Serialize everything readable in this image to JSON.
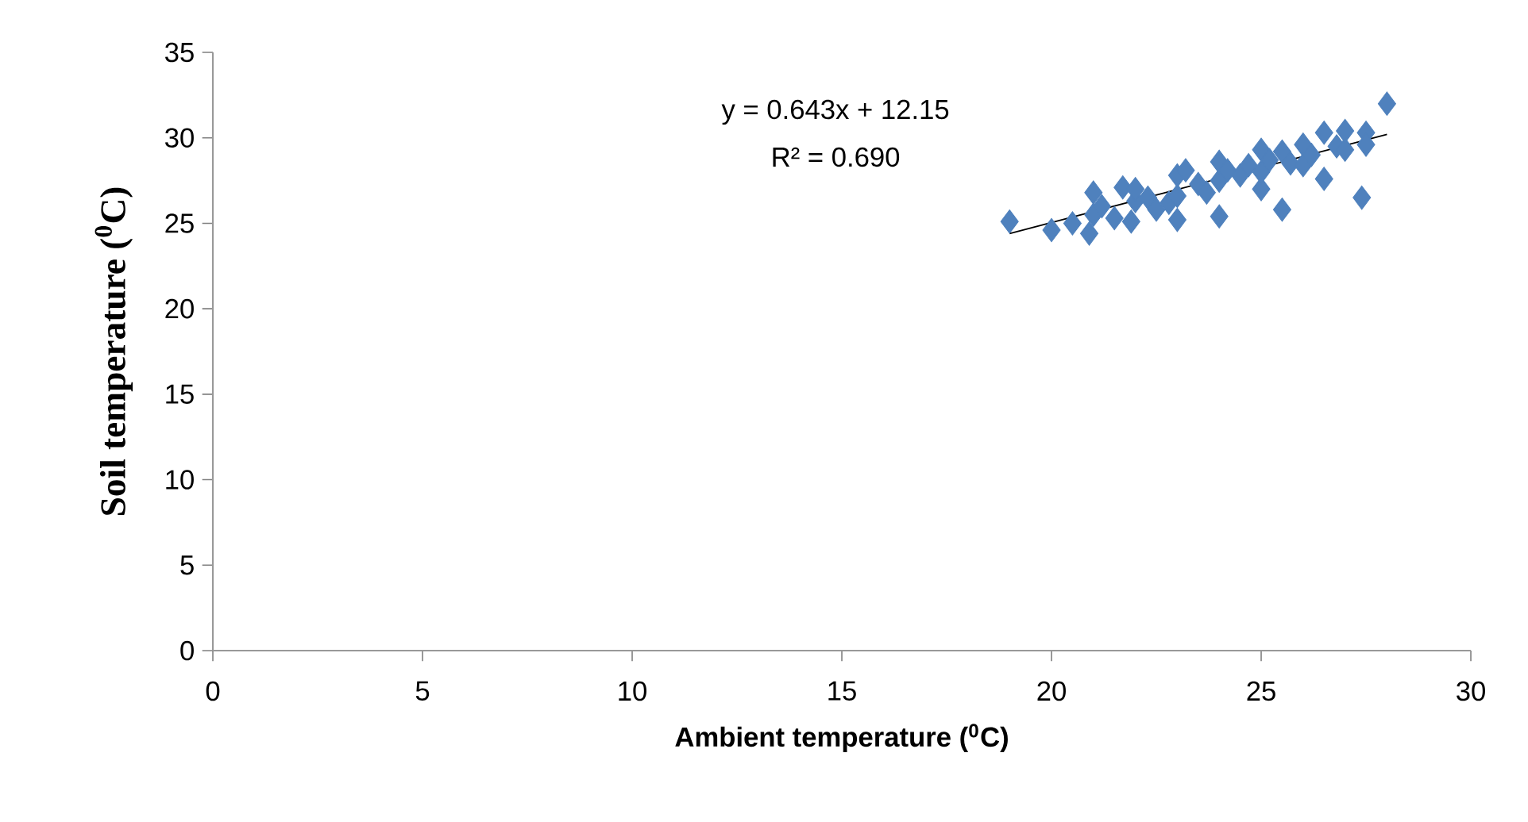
{
  "chart_data": {
    "type": "scatter",
    "xlabel": "Ambient temperature ($^{0}$C)",
    "ylabel": "Soil temperature ($^{0}$C)",
    "annotations": [
      "y = 0.643x + 12.15",
      "R² = 0.690"
    ],
    "xlim": [
      0,
      30
    ],
    "ylim": [
      0,
      35
    ],
    "xticks": [
      0,
      5,
      10,
      15,
      20,
      25,
      30
    ],
    "yticks": [
      0,
      5,
      10,
      15,
      20,
      25,
      30,
      35
    ],
    "grid": false,
    "series": [
      {
        "color": "#4f81bd",
        "marker": "diamond",
        "x": [
          19,
          20,
          20.5,
          20.9,
          21,
          21,
          21.2,
          21.5,
          21.7,
          21.9,
          22,
          22,
          22.3,
          22.5,
          22.8,
          23,
          23,
          23,
          23.2,
          23.5,
          23.7,
          24,
          24,
          24,
          24.2,
          24.5,
          24.7,
          25,
          25,
          25,
          25.2,
          25.5,
          25.5,
          25.7,
          26,
          26,
          26.2,
          26.5,
          26.5,
          26.8,
          27,
          27,
          27.4,
          27.5,
          27.5,
          28
        ],
        "values": [
          25.1,
          24.6,
          25,
          24.4,
          25.5,
          26.8,
          26,
          25.3,
          27.1,
          25.1,
          26.3,
          27,
          26.5,
          25.8,
          26.2,
          25.2,
          26.6,
          27.8,
          28.1,
          27.3,
          26.8,
          25.4,
          27.5,
          28.6,
          28.1,
          27.8,
          28.4,
          27,
          28,
          29.3,
          28.7,
          25.8,
          29.2,
          28.5,
          29.6,
          28.4,
          29,
          27.6,
          30.3,
          29.5,
          30.4,
          29.3,
          26.5,
          30.3,
          29.6,
          32
        ]
      },
      {
        "type": "line",
        "color": "#000000",
        "marker": "none",
        "x": [
          19,
          28
        ],
        "values": [
          24.4,
          30.2
        ]
      }
    ]
  }
}
